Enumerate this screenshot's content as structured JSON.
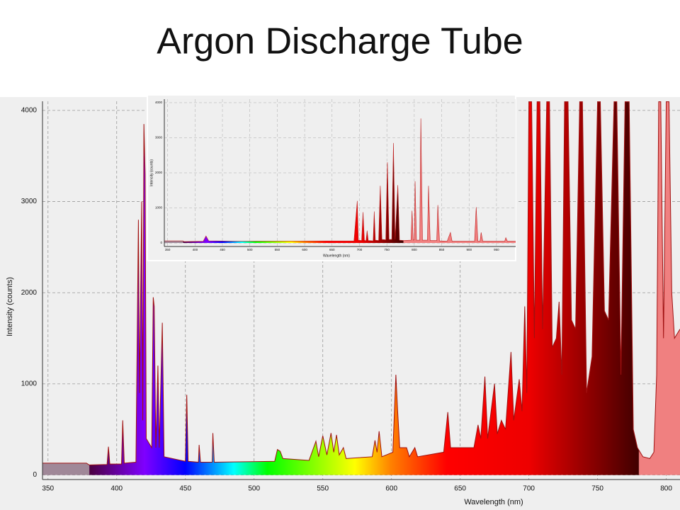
{
  "title": "Argon Discharge Tube",
  "chart_data": [
    {
      "type": "area",
      "xlabel": "Wavelength (nm)",
      "ylabel": "Intensity (counts)",
      "color": "#a01010",
      "grid": true,
      "xlim": [
        346,
        810
      ],
      "ylim": [
        -50,
        4100
      ],
      "xticks": [
        350,
        400,
        450,
        500,
        550,
        600,
        650,
        700,
        750,
        800
      ],
      "yticks": [
        0,
        1000,
        2000,
        3000,
        4000
      ],
      "x": [
        346,
        378,
        380,
        393,
        394,
        395,
        403.5,
        404.4,
        405.5,
        414,
        415.8,
        416.6,
        418.2,
        419,
        419.8,
        420.7,
        421.5,
        425.5,
        426.6,
        427.3,
        428.5,
        430,
        431,
        433.2,
        434.5,
        450,
        451,
        452,
        459.5,
        460,
        461,
        469.5,
        470,
        471,
        515,
        517,
        519,
        521,
        540,
        545,
        547,
        550,
        553,
        556,
        558,
        560,
        562,
        565,
        567,
        586,
        588,
        589.5,
        591,
        593,
        601,
        603.2,
        604.5,
        606,
        611,
        613,
        617,
        619,
        638,
        641,
        643,
        660,
        663,
        665,
        668,
        670,
        675,
        677,
        680,
        683,
        687,
        689,
        693,
        695,
        697,
        698.5,
        700,
        702,
        704,
        706,
        708,
        710,
        713,
        715,
        717,
        720,
        722,
        724,
        726,
        728.5,
        731,
        734,
        737,
        739,
        742,
        746,
        750,
        752,
        755,
        758,
        762,
        764,
        767,
        770,
        773,
        776,
        779,
        783,
        788,
        791,
        793,
        794.5,
        796,
        798,
        800,
        802,
        804,
        806,
        810
      ],
      "values": [
        130,
        130,
        110,
        115,
        310,
        120,
        120,
        600,
        130,
        140,
        2800,
        900,
        3000,
        600,
        3850,
        3300,
        400,
        300,
        1950,
        1850,
        300,
        1200,
        300,
        1670,
        200,
        150,
        880,
        150,
        140,
        330,
        140,
        140,
        460,
        140,
        150,
        280,
        260,
        180,
        160,
        370,
        200,
        430,
        220,
        460,
        250,
        440,
        220,
        300,
        180,
        200,
        380,
        250,
        480,
        200,
        250,
        1100,
        700,
        300,
        300,
        200,
        300,
        200,
        250,
        690,
        300,
        300,
        550,
        400,
        1080,
        400,
        1000,
        450,
        600,
        500,
        1350,
        600,
        1050,
        700,
        1850,
        900,
        4095,
        4095,
        1500,
        4095,
        4095,
        1600,
        4095,
        4095,
        1400,
        1500,
        1900,
        1100,
        4095,
        4095,
        1700,
        1600,
        4095,
        4095,
        900,
        1300,
        4095,
        4095,
        1800,
        1700,
        4095,
        4095,
        1100,
        4095,
        4095,
        500,
        300,
        200,
        180,
        250,
        1100,
        4095,
        4095,
        1500,
        4095,
        4095,
        2000,
        1500,
        1600
      ]
    },
    {
      "type": "area",
      "xlabel": "Wavelength (nm)",
      "ylabel": "Intensity (counts)",
      "color": "#c02020",
      "grid": true,
      "xlim": [
        344,
        985
      ],
      "ylim": [
        -100,
        4100
      ],
      "xticks": [
        350,
        400,
        450,
        500,
        550,
        600,
        650,
        700,
        750,
        800,
        850,
        900,
        950
      ],
      "yticks": [
        0,
        1000,
        2000,
        3000,
        4000
      ],
      "x": [
        344,
        378,
        380,
        415,
        420,
        425,
        480,
        690,
        696,
        698,
        704,
        706.5,
        709,
        712,
        714,
        716,
        725,
        727,
        729,
        735,
        738,
        741,
        748,
        751,
        754,
        759,
        762,
        765,
        770,
        773,
        781,
        794,
        796,
        798,
        800,
        801.5,
        804,
        810,
        812,
        815,
        824,
        826,
        829,
        841,
        843,
        846,
        860,
        866,
        869,
        910,
        913,
        916,
        920,
        922,
        925,
        965,
        967,
        970,
        985
      ],
      "values": [
        60,
        60,
        40,
        50,
        200,
        60,
        50,
        60,
        1200,
        80,
        70,
        880,
        80,
        60,
        350,
        70,
        60,
        900,
        80,
        70,
        1630,
        100,
        90,
        2300,
        100,
        100,
        2850,
        100,
        1650,
        80,
        70,
        80,
        920,
        80,
        90,
        1760,
        80,
        80,
        3550,
        80,
        80,
        1630,
        70,
        70,
        1080,
        60,
        50,
        300,
        50,
        50,
        1020,
        50,
        50,
        300,
        50,
        50,
        150,
        50,
        50
      ]
    }
  ]
}
